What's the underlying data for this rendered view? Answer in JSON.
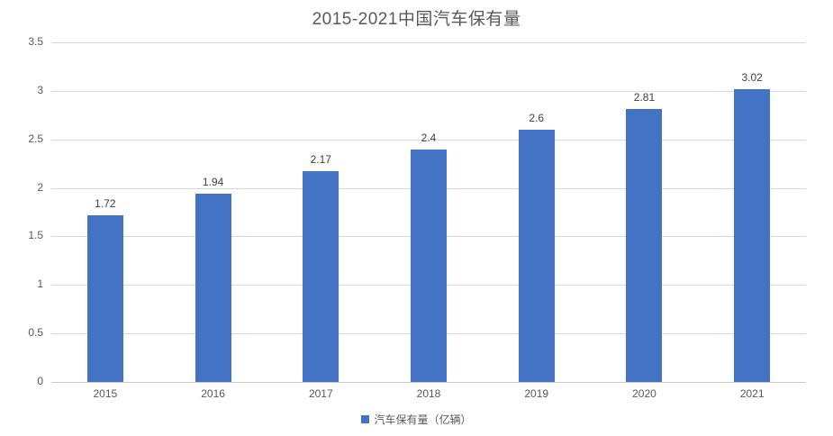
{
  "chart_data": {
    "type": "bar",
    "title": "2015-2021中国汽车保有量",
    "categories": [
      "2015",
      "2016",
      "2017",
      "2018",
      "2019",
      "2020",
      "2021"
    ],
    "values": [
      1.72,
      1.94,
      2.17,
      2.4,
      2.6,
      2.81,
      3.02
    ],
    "value_labels": [
      "1.72",
      "1.94",
      "2.17",
      "2.4",
      "2.6",
      "2.81",
      "3.02"
    ],
    "series_name": "汽车保有量（亿辆）",
    "xlabel": "",
    "ylabel": "",
    "ylim": [
      0,
      3.5
    ],
    "ytick_step": 0.5,
    "ytick_labels": [
      "0",
      "0.5",
      "1",
      "1.5",
      "2",
      "2.5",
      "3",
      "3.5"
    ],
    "grid": "horizontal",
    "legend_position": "bottom",
    "bar_color": "#4472c4",
    "gridline_color": "#d9d9d9",
    "title_color": "#595959",
    "label_color": "#404040"
  },
  "legend": {
    "label": "汽车保有量（亿辆）"
  }
}
